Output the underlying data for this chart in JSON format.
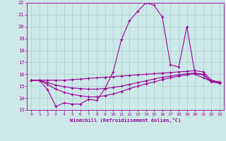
{
  "xlabel": "Windchill (Refroidissement éolien,°C)",
  "xlim": [
    -0.5,
    23.5
  ],
  "ylim": [
    13,
    22
  ],
  "xticks": [
    0,
    1,
    2,
    3,
    4,
    5,
    6,
    7,
    8,
    9,
    10,
    11,
    12,
    13,
    14,
    15,
    16,
    17,
    18,
    19,
    20,
    21,
    22,
    23
  ],
  "yticks": [
    13,
    14,
    15,
    16,
    17,
    18,
    19,
    20,
    21,
    22
  ],
  "background_color": "#cde8e8",
  "grid_color": "#aacccc",
  "line_color": "#990099",
  "hours": [
    0,
    1,
    2,
    3,
    4,
    5,
    6,
    7,
    8,
    9,
    10,
    11,
    12,
    13,
    14,
    15,
    16,
    17,
    18,
    19,
    20,
    21,
    22,
    23
  ],
  "curve1": [
    15.5,
    15.5,
    14.7,
    13.3,
    13.6,
    13.5,
    13.5,
    13.9,
    13.8,
    14.8,
    16.2,
    18.9,
    20.5,
    21.3,
    22.0,
    21.8,
    20.8,
    16.8,
    16.6,
    20.0,
    16.0,
    15.7,
    15.4,
    15.3
  ],
  "curve2": [
    15.5,
    15.5,
    15.5,
    15.5,
    15.5,
    15.55,
    15.6,
    15.65,
    15.7,
    15.75,
    15.8,
    15.85,
    15.9,
    15.95,
    16.0,
    16.05,
    16.1,
    16.15,
    16.2,
    16.25,
    16.3,
    16.2,
    15.5,
    15.35
  ],
  "curve3": [
    15.5,
    15.5,
    15.3,
    15.1,
    14.95,
    14.85,
    14.8,
    14.75,
    14.75,
    14.8,
    14.9,
    15.0,
    15.15,
    15.3,
    15.45,
    15.6,
    15.75,
    15.85,
    15.95,
    16.05,
    16.1,
    16.0,
    15.4,
    15.3
  ],
  "curve4": [
    15.5,
    15.5,
    15.15,
    14.75,
    14.5,
    14.3,
    14.2,
    14.1,
    14.1,
    14.2,
    14.35,
    14.55,
    14.8,
    15.0,
    15.2,
    15.35,
    15.55,
    15.7,
    15.85,
    15.95,
    16.05,
    15.95,
    15.35,
    15.25
  ]
}
